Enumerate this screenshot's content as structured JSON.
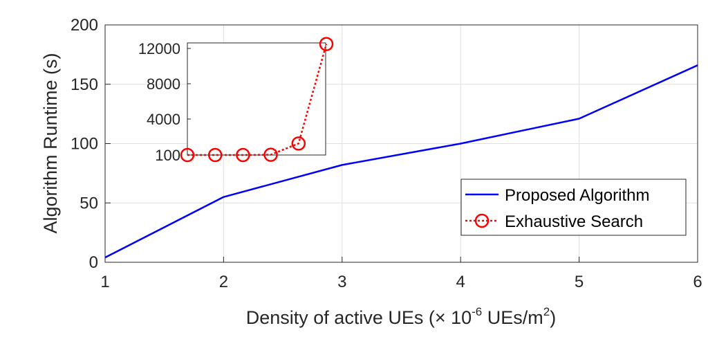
{
  "chart_data": [
    {
      "type": "line",
      "xlabel": "Density of active UEs (× 10",
      "xlabel_sup1": "-6",
      "xlabel_mid": " UEs/m",
      "xlabel_sup2": "2",
      "xlabel_end": ")",
      "ylabel": "Algorithm Runtime (s)",
      "xlim": [
        1,
        6
      ],
      "ylim": [
        0,
        200
      ],
      "xticks": [
        "1",
        "2",
        "3",
        "4",
        "5",
        "6"
      ],
      "yticks": [
        "0",
        "50",
        "100",
        "150",
        "200"
      ],
      "grid": true,
      "legend_position": "bottom-right",
      "series": [
        {
          "name": "Proposed Algorithm",
          "color": "#0000ff",
          "style": "solid",
          "x": [
            1,
            2,
            3,
            4,
            5,
            6
          ],
          "values": [
            4,
            55,
            82,
            100,
            121,
            166
          ]
        }
      ]
    },
    {
      "type": "line",
      "title": "",
      "yticks": [
        "100",
        "4000",
        "8000",
        "12000"
      ],
      "ylim": [
        100,
        12600
      ],
      "grid": false,
      "series": [
        {
          "name": "Exhaustive Search",
          "color": "#ff0000",
          "style": "dotted",
          "marker": "circle",
          "x": [
            1,
            2,
            3,
            4,
            5,
            6
          ],
          "values": [
            100,
            100,
            100,
            130,
            1350,
            12500
          ]
        }
      ]
    }
  ]
}
